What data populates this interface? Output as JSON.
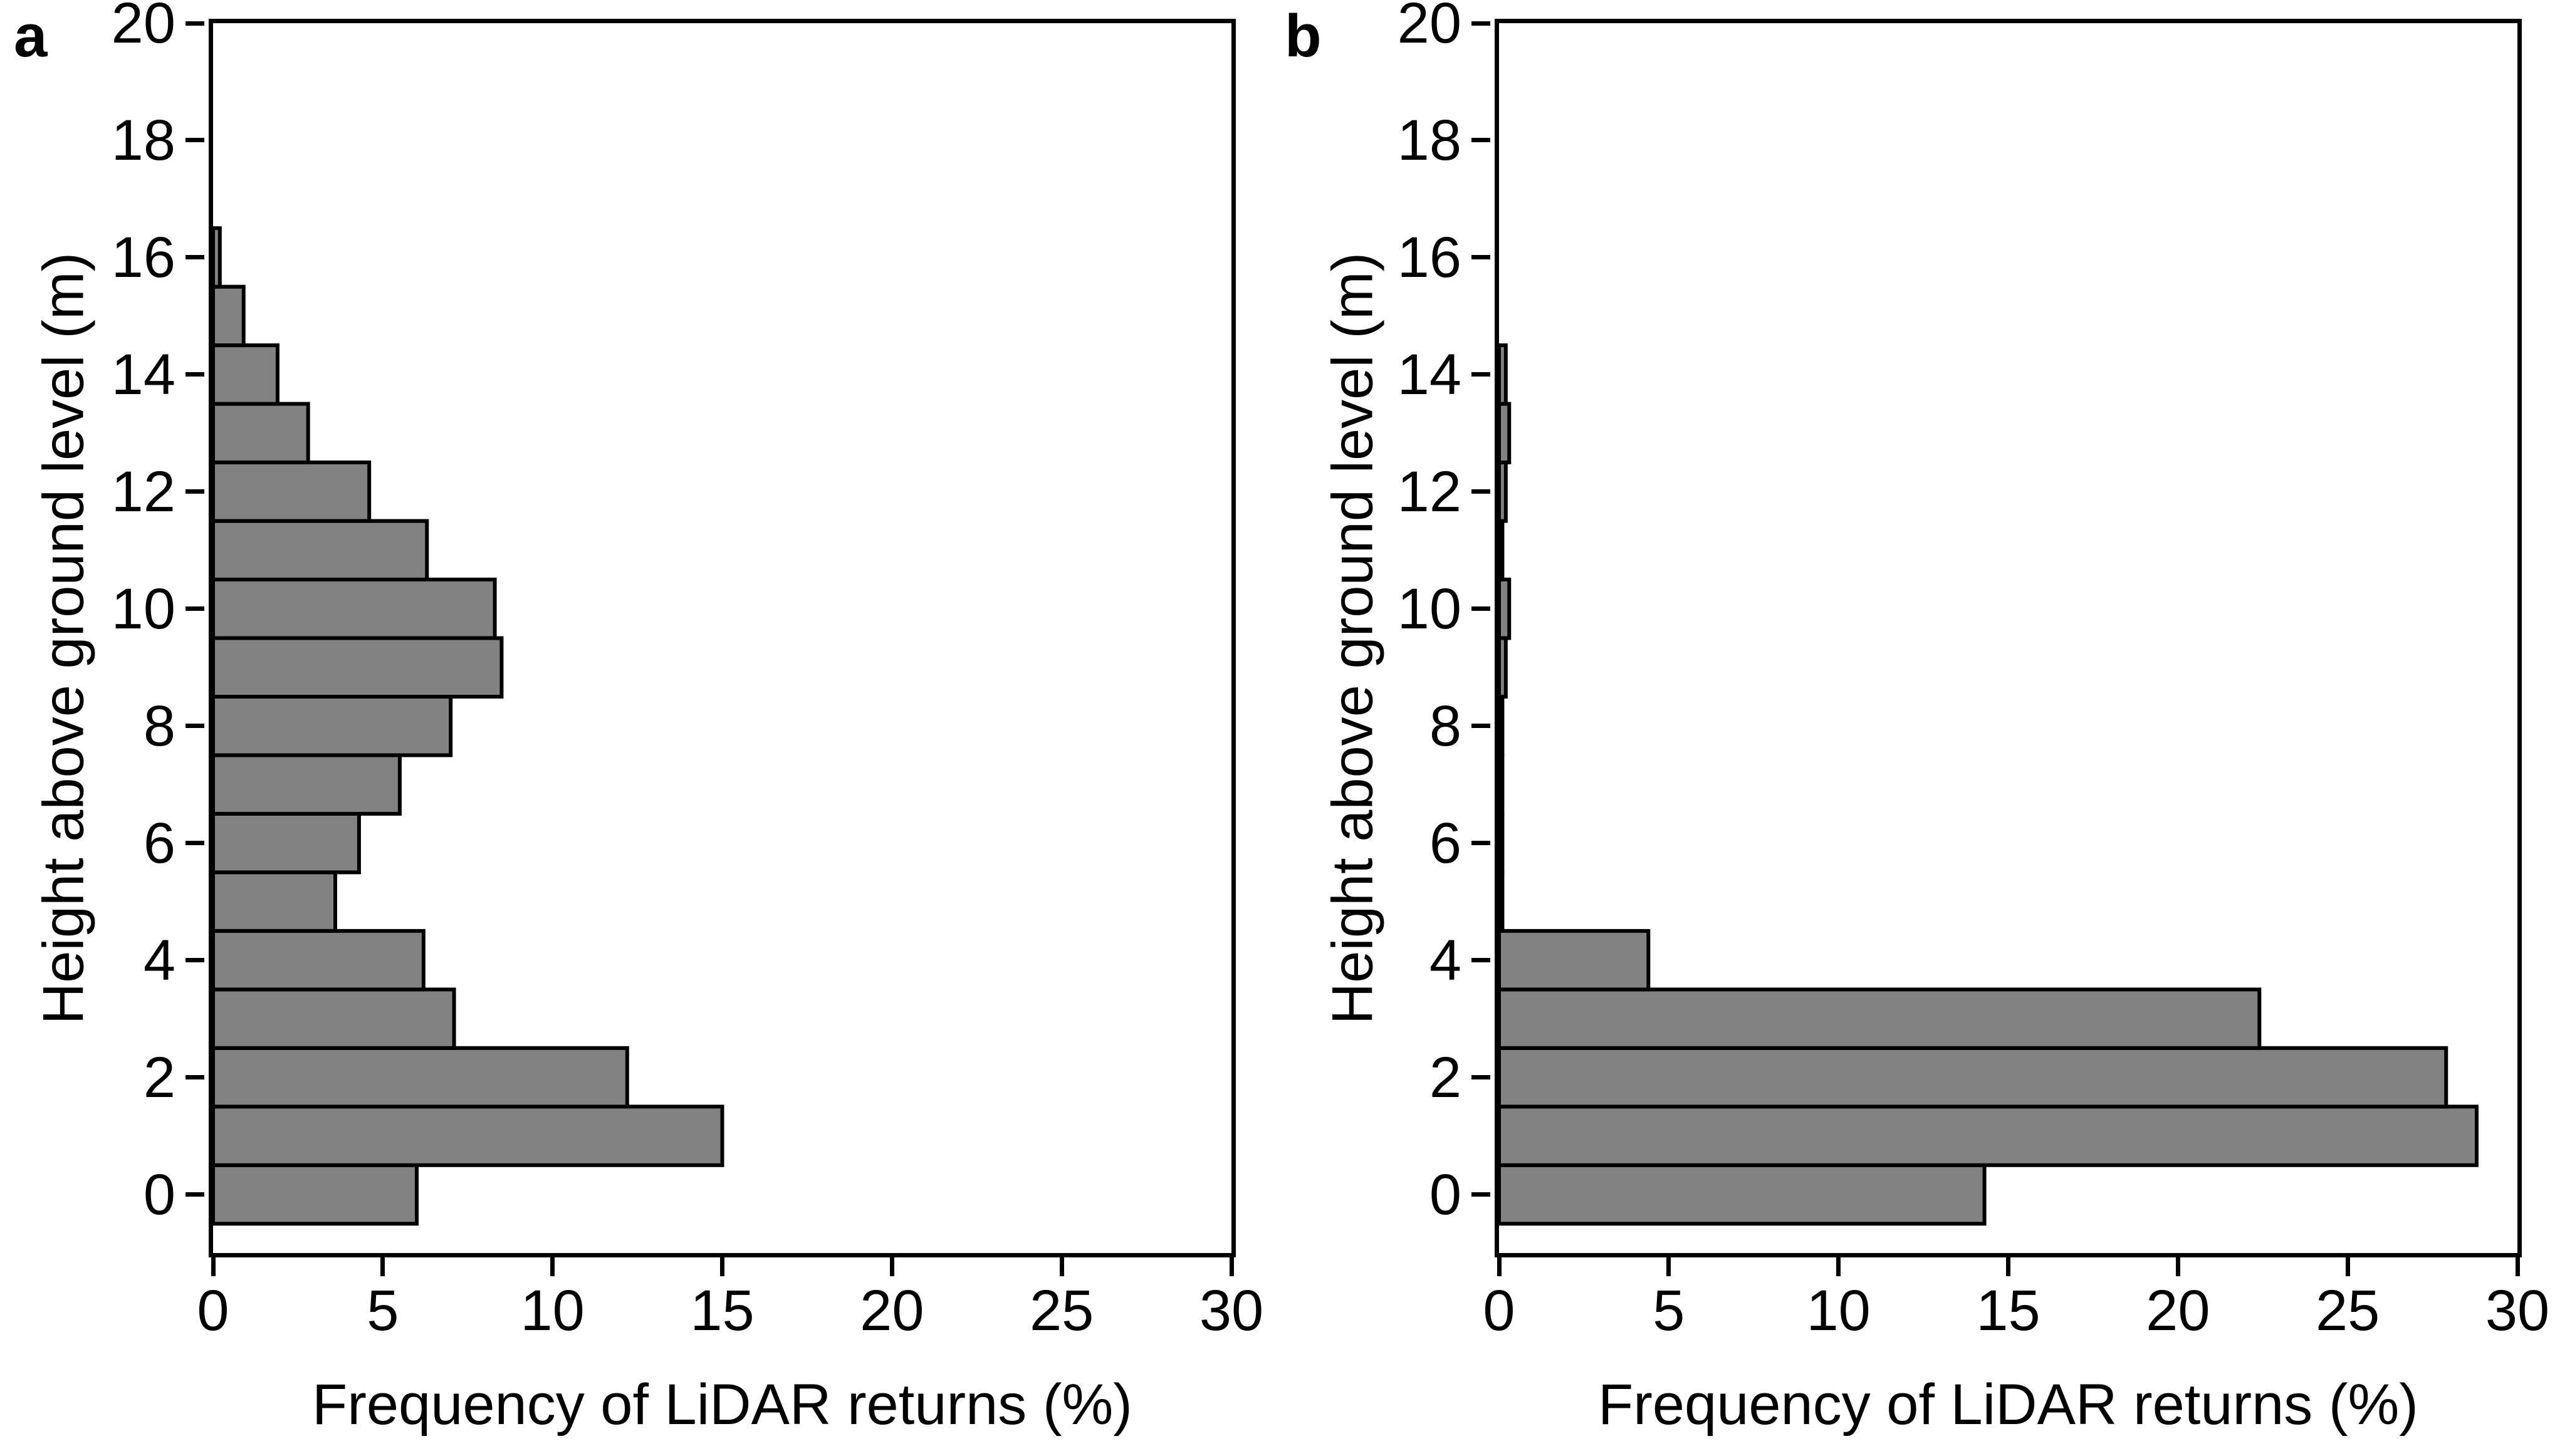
{
  "figure": {
    "background": "#ffffff",
    "bar_fill": "#828282",
    "bar_stroke": "#000000",
    "axis_color": "#000000",
    "text_color": "#000000"
  },
  "chart_data": [
    {
      "type": "bar",
      "orientation": "horizontal",
      "panel_label": "a",
      "xlabel": "Frequency of LiDAR returns (%)",
      "ylabel": "Height above ground level (m)",
      "xlim": [
        0,
        30
      ],
      "ylim": [
        -1,
        20
      ],
      "x_ticks": [
        0,
        5,
        10,
        15,
        20,
        25,
        30
      ],
      "y_ticks": [
        0,
        2,
        4,
        6,
        8,
        10,
        12,
        14,
        16,
        18,
        20
      ],
      "grid": false,
      "legend_position": "none",
      "bin_width_m": 1,
      "bin_centers_m": [
        0,
        1,
        2,
        3,
        4,
        5,
        6,
        7,
        8,
        9,
        10,
        11,
        12,
        13,
        14,
        15,
        16
      ],
      "values_pct": [
        6.0,
        15.0,
        12.2,
        7.1,
        6.2,
        3.6,
        4.3,
        5.5,
        7.0,
        8.5,
        8.3,
        6.3,
        4.6,
        2.8,
        1.9,
        0.9,
        0.2
      ]
    },
    {
      "type": "bar",
      "orientation": "horizontal",
      "panel_label": "b",
      "xlabel": "Frequency of LiDAR returns (%)",
      "ylabel": "Height above ground level (m)",
      "xlim": [
        0,
        30
      ],
      "ylim": [
        -1,
        20
      ],
      "x_ticks": [
        0,
        5,
        10,
        15,
        20,
        25,
        30
      ],
      "y_ticks": [
        0,
        2,
        4,
        6,
        8,
        10,
        12,
        14,
        16,
        18,
        20
      ],
      "grid": false,
      "legend_position": "none",
      "bin_width_m": 1,
      "bin_centers_m": [
        0,
        1,
        2,
        3,
        4,
        5,
        6,
        7,
        8,
        9,
        10,
        11,
        12,
        13,
        14
      ],
      "values_pct": [
        14.3,
        28.8,
        27.9,
        22.4,
        4.4,
        0.1,
        0.1,
        0.1,
        0.1,
        0.2,
        0.3,
        0.1,
        0.2,
        0.3,
        0.2
      ]
    }
  ]
}
